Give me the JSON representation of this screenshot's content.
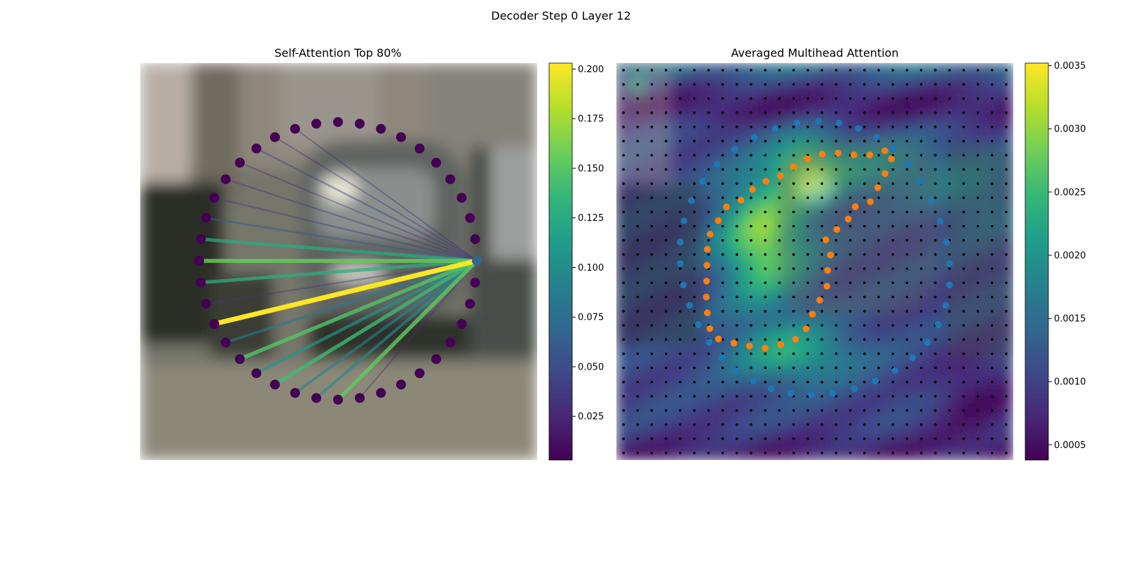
{
  "figure": {
    "suptitle": "Decoder Step 0 Layer 12"
  },
  "palette": {
    "viridis": [
      "#440154",
      "#482878",
      "#3e4989",
      "#31688e",
      "#26828e",
      "#1f9e89",
      "#35b779",
      "#6ece58",
      "#b5de2b",
      "#fde725"
    ],
    "point_purple": "#440154",
    "query_point": "#31688e",
    "grid_dot": "#000000",
    "series_blue": "#1f77b4",
    "series_orange": "#ff7f0e"
  },
  "chart_data": [
    {
      "type": "scatter",
      "title": "Self-Attention Top 80%",
      "background": "blurred street photo with parked cars",
      "points": {
        "count": 40,
        "shape": "circle",
        "query_index": 10
      },
      "edges": [
        {
          "from": 10,
          "to": 27,
          "weight": 0.202
        },
        {
          "from": 10,
          "to": 30,
          "weight": 0.155
        },
        {
          "from": 10,
          "to": 20,
          "weight": 0.153
        },
        {
          "from": 10,
          "to": 25,
          "weight": 0.148
        },
        {
          "from": 10,
          "to": 23,
          "weight": 0.14
        },
        {
          "from": 10,
          "to": 29,
          "weight": 0.128
        },
        {
          "from": 10,
          "to": 31,
          "weight": 0.125
        },
        {
          "from": 10,
          "to": 24,
          "weight": 0.108
        },
        {
          "from": 10,
          "to": 21,
          "weight": 0.1
        },
        {
          "from": 10,
          "to": 22,
          "weight": 0.092
        },
        {
          "from": 10,
          "to": 26,
          "weight": 0.085
        },
        {
          "from": 10,
          "to": 32,
          "weight": 0.06
        },
        {
          "from": 10,
          "to": 36,
          "weight": 0.045
        },
        {
          "from": 10,
          "to": 33,
          "weight": 0.04
        },
        {
          "from": 10,
          "to": 28,
          "weight": 0.035
        },
        {
          "from": 10,
          "to": 34,
          "weight": 0.03
        },
        {
          "from": 10,
          "to": 19,
          "weight": 0.028
        },
        {
          "from": 10,
          "to": 38,
          "weight": 0.025
        },
        {
          "from": 10,
          "to": 37,
          "weight": 0.022
        },
        {
          "from": 10,
          "to": 35,
          "weight": 0.02
        }
      ],
      "colorbar": {
        "colormap": "viridis",
        "vmin": 0.003,
        "vmax": 0.203,
        "ticks": [
          0.025,
          0.05,
          0.075,
          0.1,
          0.125,
          0.15,
          0.175,
          0.2
        ],
        "tick_labels": [
          "0.025",
          "0.050",
          "0.075",
          "0.100",
          "0.125",
          "0.150",
          "0.175",
          "0.200"
        ]
      }
    },
    {
      "type": "heatmap",
      "title": "Averaged Multihead Attention",
      "grid": {
        "rows": 28,
        "cols": 28
      },
      "overlay": "blurred street photo with parked cars",
      "series": [
        {
          "marker": "circle",
          "color": "#1f77b4",
          "count": 40
        },
        {
          "marker": "circle",
          "color": "#ff7f0e",
          "count": 40
        }
      ],
      "colorbar": {
        "colormap": "viridis",
        "vmin": 0.00038,
        "vmax": 0.00352,
        "ticks": [
          0.0005,
          0.001,
          0.0015,
          0.002,
          0.0025,
          0.003,
          0.0035
        ],
        "tick_labels": [
          "0.0005",
          "0.0010",
          "0.0015",
          "0.0020",
          "0.0025",
          "0.0030",
          "0.0035"
        ]
      }
    }
  ]
}
